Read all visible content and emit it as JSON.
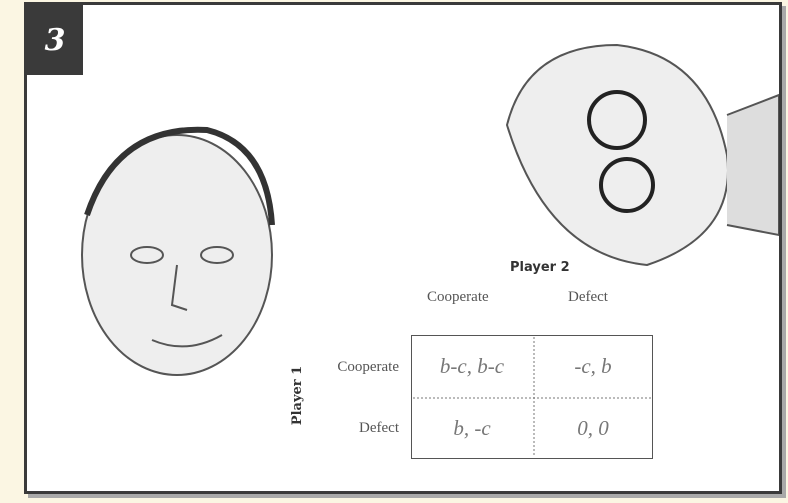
{
  "badge": "3",
  "player2": "Player 2",
  "player1": "Player 1",
  "columns": [
    "Cooperate",
    "Defect"
  ],
  "rows": [
    "Cooperate",
    "Defect"
  ],
  "cells": [
    [
      "b-c, b-c",
      "-c, b"
    ],
    [
      "b, -c",
      "0, 0"
    ]
  ]
}
